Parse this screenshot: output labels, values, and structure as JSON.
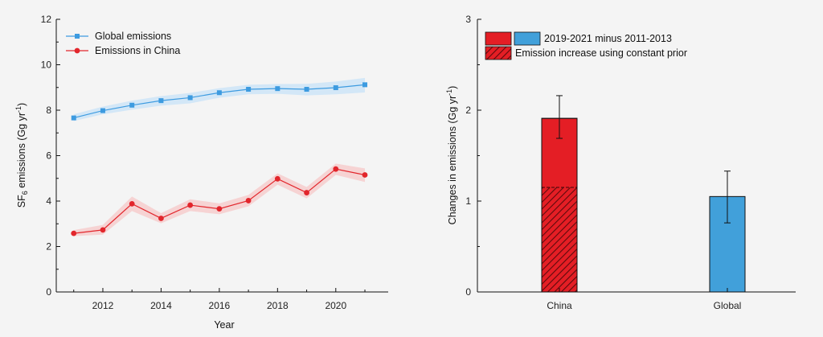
{
  "chart_data": [
    {
      "type": "line",
      "title": "",
      "panel_label": "",
      "xlabel": "Year",
      "ylabel": "SF6 emissions (Gg yr-1)",
      "ylabel_parts": {
        "pre": "SF",
        "sub": "6",
        "mid": " emissions (Gg yr",
        "sup": "-1",
        "post": ")"
      },
      "xlim": [
        2010.4,
        2021.8
      ],
      "ylim": [
        0,
        12
      ],
      "x_ticks": [
        2012,
        2014,
        2016,
        2018,
        2020
      ],
      "x_tick_labels": [
        "2012",
        "2014",
        "2016",
        "2018",
        "2020"
      ],
      "y_ticks": [
        0,
        2,
        4,
        6,
        8,
        10,
        12
      ],
      "y_tick_labels": [
        "0",
        "2",
        "4",
        "6",
        "8",
        "10",
        "12"
      ],
      "legend_position": "top-left",
      "grid": false,
      "series": [
        {
          "name": "Global emissions",
          "color": "#3d9be0",
          "band_color": "#cfe6f7",
          "marker": "square",
          "x": [
            2011,
            2012,
            2013,
            2014,
            2015,
            2016,
            2017,
            2018,
            2019,
            2020,
            2021
          ],
          "y": [
            7.66,
            7.98,
            8.22,
            8.42,
            8.55,
            8.77,
            8.92,
            8.95,
            8.92,
            8.99,
            9.12
          ],
          "lower": [
            7.52,
            7.82,
            8.02,
            8.2,
            8.3,
            8.55,
            8.7,
            8.72,
            8.65,
            8.7,
            8.78
          ],
          "upper": [
            7.82,
            8.16,
            8.42,
            8.62,
            8.76,
            8.97,
            9.12,
            9.15,
            9.16,
            9.26,
            9.42
          ]
        },
        {
          "name": "Emissions in China",
          "color": "#e2262c",
          "band_color": "#f6cfcf",
          "marker": "circle",
          "x": [
            2011,
            2012,
            2013,
            2014,
            2015,
            2016,
            2017,
            2018,
            2019,
            2020,
            2021
          ],
          "y": [
            2.58,
            2.73,
            3.88,
            3.24,
            3.82,
            3.66,
            4.02,
            4.98,
            4.37,
            5.41,
            5.15
          ],
          "lower": [
            2.46,
            2.52,
            3.56,
            3.02,
            3.56,
            3.42,
            3.77,
            4.72,
            4.12,
            5.15,
            4.84
          ],
          "upper": [
            2.72,
            2.95,
            4.2,
            3.47,
            4.08,
            3.9,
            4.27,
            5.22,
            4.62,
            5.65,
            5.44
          ]
        }
      ]
    },
    {
      "type": "bar",
      "title": "",
      "panel_label": "",
      "xlabel": "",
      "ylabel": "Changes in emissions (Gg yr-1)",
      "ylabel_parts": {
        "pre": "Changes in emissions (Gg yr",
        "sup": "-1",
        "post": ")"
      },
      "ylim": [
        0,
        3
      ],
      "y_ticks": [
        0,
        1,
        2,
        3
      ],
      "y_tick_labels": [
        "0",
        "1",
        "2",
        "3"
      ],
      "categories": [
        "China",
        "Global"
      ],
      "legend_position": "top-left",
      "legend": {
        "label_1": "2019-2021 minus 2011-2013",
        "label_2": "Emission increase using constant prior"
      },
      "series": [
        {
          "name": "2019-2021 minus 2011-2013",
          "colors": [
            "#e41e25",
            "#41a0da"
          ],
          "values": [
            1.91,
            1.05
          ],
          "error_low": [
            1.69,
            0.76
          ],
          "error_high": [
            2.16,
            1.33
          ]
        },
        {
          "name": "Emission increase using constant prior",
          "pattern": "red-hatched",
          "values": [
            1.15,
            null
          ]
        }
      ]
    }
  ]
}
